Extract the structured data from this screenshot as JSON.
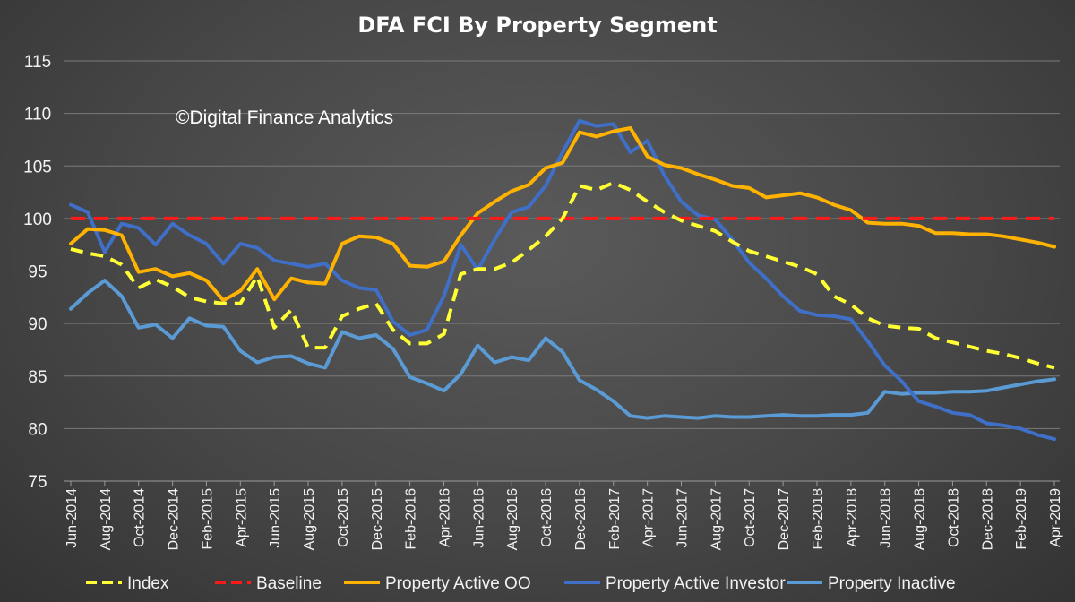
{
  "chart_data": {
    "type": "line",
    "title": "DFA FCI By Property Segment",
    "annotation": "©Digital Finance Analytics",
    "xlabel": "",
    "ylabel": "",
    "ylim": [
      75,
      115
    ],
    "yticks": [
      75,
      80,
      85,
      90,
      95,
      100,
      105,
      110,
      115
    ],
    "grid": true,
    "legend_position": "bottom",
    "x": [
      "Jun-2014",
      "Jul-2014",
      "Aug-2014",
      "Sep-2014",
      "Oct-2014",
      "Nov-2014",
      "Dec-2014",
      "Jan-2015",
      "Feb-2015",
      "Mar-2015",
      "Apr-2015",
      "May-2015",
      "Jun-2015",
      "Jul-2015",
      "Aug-2015",
      "Sep-2015",
      "Oct-2015",
      "Nov-2015",
      "Dec-2015",
      "Jan-2016",
      "Feb-2016",
      "Mar-2016",
      "Apr-2016",
      "May-2016",
      "Jun-2016",
      "Jul-2016",
      "Aug-2016",
      "Sep-2016",
      "Oct-2016",
      "Nov-2016",
      "Dec-2016",
      "Jan-2017",
      "Feb-2017",
      "Mar-2017",
      "Apr-2017",
      "May-2017",
      "Jun-2017",
      "Jul-2017",
      "Aug-2017",
      "Sep-2017",
      "Oct-2017",
      "Nov-2017",
      "Dec-2017",
      "Jan-2018",
      "Feb-2018",
      "Mar-2018",
      "Apr-2018",
      "May-2018",
      "Jun-2018",
      "Jul-2018",
      "Aug-2018",
      "Sep-2018",
      "Oct-2018",
      "Nov-2018",
      "Dec-2018",
      "Jan-2019",
      "Feb-2019",
      "Mar-2019",
      "Apr-2019"
    ],
    "tick_labels": [
      "Jun-2014",
      "Aug-2014",
      "Oct-2014",
      "Dec-2014",
      "Feb-2015",
      "Apr-2015",
      "Jun-2015",
      "Aug-2015",
      "Oct-2015",
      "Dec-2015",
      "Feb-2016",
      "Apr-2016",
      "Jun-2016",
      "Aug-2016",
      "Oct-2016",
      "Dec-2016",
      "Feb-2017",
      "Apr-2017",
      "Jun-2017",
      "Aug-2017",
      "Oct-2017",
      "Dec-2017",
      "Feb-2018",
      "Apr-2018",
      "Jun-2018",
      "Aug-2018",
      "Oct-2018",
      "Dec-2018",
      "Feb-2019",
      "Apr-2019"
    ],
    "series": [
      {
        "name": "Index",
        "color": "#ffff33",
        "style": "dashed",
        "values": [
          97.1,
          96.7,
          96.4,
          95.6,
          93.4,
          94.2,
          93.5,
          92.5,
          92.1,
          91.9,
          91.9,
          94.5,
          89.6,
          91.3,
          87.7,
          87.7,
          90.7,
          91.4,
          91.9,
          89.4,
          88.1,
          88.1,
          89.0,
          94.7,
          95.2,
          95.2,
          95.8,
          97.0,
          98.3,
          100.0,
          103.1,
          102.7,
          103.4,
          102.7,
          101.6,
          100.6,
          99.8,
          99.3,
          98.8,
          97.8,
          96.9,
          96.4,
          95.9,
          95.4,
          94.7,
          92.6,
          91.8,
          90.5,
          89.8,
          89.6,
          89.5,
          88.6,
          88.2,
          87.8,
          87.4,
          87.1,
          86.7,
          86.2,
          85.8
        ]
      },
      {
        "name": "Baseline",
        "color": "#ff1a1a",
        "style": "dashed",
        "values": [
          100,
          100,
          100,
          100,
          100,
          100,
          100,
          100,
          100,
          100,
          100,
          100,
          100,
          100,
          100,
          100,
          100,
          100,
          100,
          100,
          100,
          100,
          100,
          100,
          100,
          100,
          100,
          100,
          100,
          100,
          100,
          100,
          100,
          100,
          100,
          100,
          100,
          100,
          100,
          100,
          100,
          100,
          100,
          100,
          100,
          100,
          100,
          100,
          100,
          100,
          100,
          100,
          100,
          100,
          100,
          100,
          100,
          100,
          100
        ]
      },
      {
        "name": "Property Active OO",
        "color": "#ffb300",
        "style": "solid",
        "values": [
          97.6,
          99.0,
          98.9,
          98.4,
          94.9,
          95.2,
          94.5,
          94.8,
          94.1,
          92.2,
          93.1,
          95.2,
          92.3,
          94.3,
          93.9,
          93.8,
          97.6,
          98.3,
          98.2,
          97.6,
          95.5,
          95.4,
          95.9,
          98.4,
          100.5,
          101.6,
          102.6,
          103.2,
          104.8,
          105.3,
          108.2,
          107.8,
          108.3,
          108.6,
          105.9,
          105.1,
          104.8,
          104.2,
          103.7,
          103.1,
          102.9,
          102.0,
          102.2,
          102.4,
          102.0,
          101.3,
          100.8,
          99.6,
          99.5,
          99.5,
          99.3,
          98.6,
          98.6,
          98.5,
          98.5,
          98.3,
          98.0,
          97.7,
          97.3
        ]
      },
      {
        "name": "Property Active Investor",
        "color": "#3f6fc6",
        "style": "solid",
        "values": [
          101.3,
          100.6,
          96.8,
          99.5,
          99.1,
          97.5,
          99.5,
          98.4,
          97.6,
          95.7,
          97.6,
          97.2,
          96.0,
          95.7,
          95.4,
          95.7,
          94.1,
          93.4,
          93.2,
          90.2,
          88.9,
          89.4,
          92.6,
          97.5,
          95.1,
          98.0,
          100.6,
          101.1,
          103.1,
          106.3,
          109.3,
          108.8,
          109.0,
          106.3,
          107.4,
          104.1,
          101.6,
          100.3,
          99.9,
          98.0,
          95.8,
          94.3,
          92.6,
          91.2,
          90.8,
          90.7,
          90.4,
          88.3,
          86.0,
          84.5,
          82.6,
          82.1,
          81.5,
          81.3,
          80.5,
          80.3,
          80.0,
          79.4,
          79.0
        ]
      },
      {
        "name": "Property Inactive",
        "color": "#5b9bd5",
        "style": "solid",
        "values": [
          91.4,
          92.9,
          94.1,
          92.6,
          89.6,
          89.9,
          88.6,
          90.5,
          89.8,
          89.7,
          87.4,
          86.3,
          86.8,
          86.9,
          86.2,
          85.8,
          89.2,
          88.6,
          88.9,
          87.6,
          84.9,
          84.3,
          83.6,
          85.2,
          87.9,
          86.3,
          86.8,
          86.5,
          88.6,
          87.3,
          84.6,
          83.7,
          82.6,
          81.2,
          81.0,
          81.2,
          81.1,
          81.0,
          81.2,
          81.1,
          81.1,
          81.2,
          81.3,
          81.2,
          81.2,
          81.3,
          81.3,
          81.5,
          83.5,
          83.3,
          83.4,
          83.4,
          83.5,
          83.5,
          83.6,
          83.9,
          84.2,
          84.5,
          84.7
        ]
      }
    ]
  }
}
